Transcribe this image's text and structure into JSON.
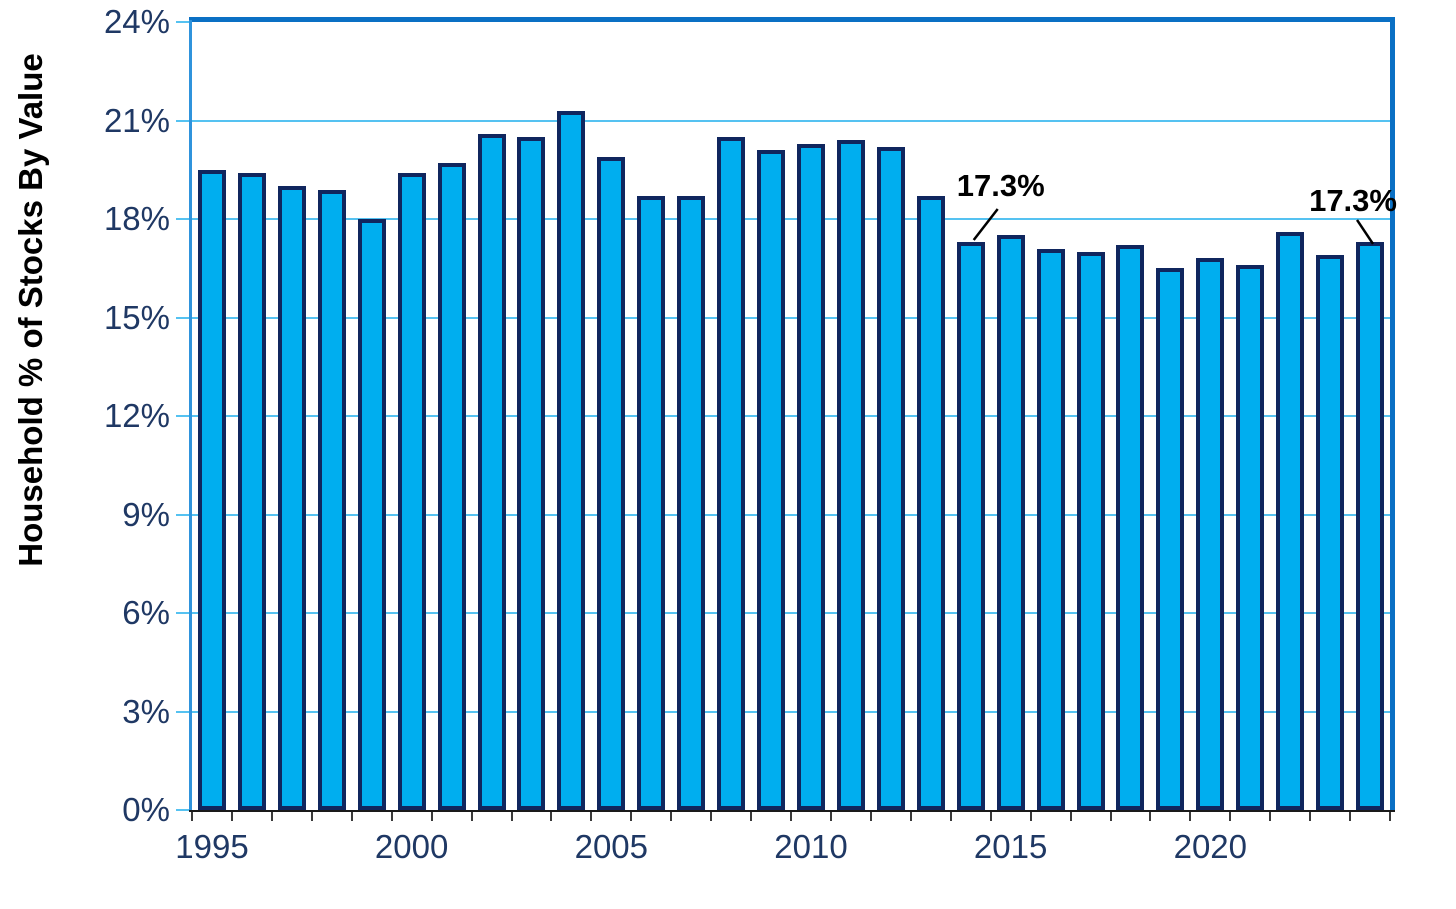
{
  "chart_data": {
    "type": "bar",
    "ylabel": "Household % of Stocks By Value",
    "xlabel": "",
    "categories": [
      "1995",
      "1996",
      "1997",
      "1998",
      "1999",
      "2000",
      "2001",
      "2002",
      "2003",
      "2004",
      "2005",
      "2006",
      "2007",
      "2008",
      "2009",
      "2010",
      "2011",
      "2012",
      "2013",
      "2014",
      "2015",
      "2016",
      "2017",
      "2018",
      "2019",
      "2020",
      "2021",
      "2022",
      "2023",
      "2024"
    ],
    "values": [
      19.5,
      19.4,
      19.0,
      18.9,
      18.0,
      19.4,
      19.7,
      20.6,
      20.5,
      21.3,
      19.9,
      18.7,
      18.7,
      20.5,
      20.1,
      20.3,
      20.4,
      20.2,
      18.7,
      17.3,
      17.5,
      17.1,
      17.0,
      17.2,
      16.5,
      16.8,
      16.6,
      17.6,
      16.9,
      17.3
    ],
    "ylim": [
      0,
      24
    ],
    "ytick_step": 3,
    "ytick_labels": [
      "0%",
      "3%",
      "6%",
      "9%",
      "12%",
      "15%",
      "18%",
      "21%",
      "24%"
    ],
    "xtick_labels": [
      "1995",
      "2000",
      "2005",
      "2010",
      "2015",
      "2020"
    ],
    "grid": "horizontal-only",
    "legend": "none",
    "annotations": [
      {
        "text": "17.3%",
        "year": "2014",
        "side": "right"
      },
      {
        "text": "17.3%",
        "year": "2024",
        "side": "left"
      }
    ],
    "colors": {
      "bar_fill": "#00AEEF",
      "bar_border": "#10265E",
      "gridline": "#55C2F1",
      "frame": "#0A70C4",
      "left_axis": "#2F93DC",
      "bottom_axis": "#1a1a1a",
      "x_tick": "#3a3a3a",
      "tick_label": "#1F3864",
      "annotation": "#000000"
    }
  }
}
